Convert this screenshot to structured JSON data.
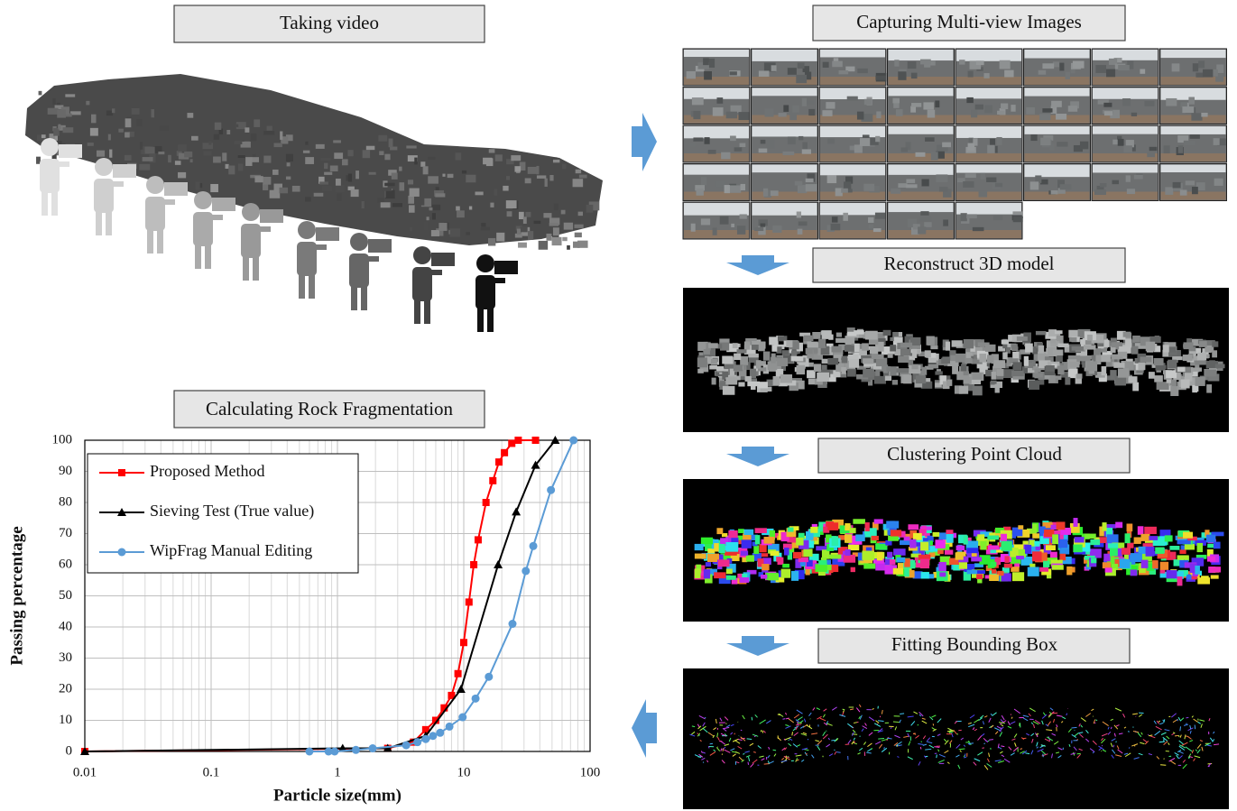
{
  "steps": {
    "taking_video": "Taking video",
    "capturing": "Capturing Multi-view Images",
    "reconstruct": "Reconstruct 3D model",
    "clustering": "Clustering Point Cloud",
    "fitting": "Fitting Bounding Box",
    "calculating": "Calculating Rock Fragmentation"
  },
  "chart_data": {
    "type": "line",
    "xlabel": "Particle size(mm)",
    "ylabel": "Passing percentage",
    "xscale": "log",
    "grid": true,
    "minor_grid": true,
    "legend": "upper left",
    "xlim": [
      0.01,
      100
    ],
    "xticks": [
      0.01,
      0.1,
      1,
      10,
      100
    ],
    "ylim": [
      0,
      100
    ],
    "yticks": [
      0,
      10,
      20,
      30,
      40,
      50,
      60,
      70,
      80,
      90,
      100
    ],
    "series": [
      {
        "name": "Proposed Method",
        "color": "#ff0000",
        "marker": "square",
        "x": [
          0.01,
          2.5,
          4,
          5,
          6,
          7,
          8,
          9,
          10,
          11,
          12,
          13,
          15,
          17,
          19,
          21,
          24,
          27,
          37
        ],
        "values": [
          0,
          1,
          3,
          7,
          10,
          14,
          18,
          25,
          35,
          48,
          60,
          68,
          80,
          87,
          93,
          96,
          99,
          100,
          100
        ]
      },
      {
        "name": "Sieving Test (True value)",
        "color": "#000000",
        "marker": "triangle",
        "x": [
          0.01,
          1.1,
          2.5,
          5,
          9.5,
          18.7,
          26,
          37,
          53
        ],
        "values": [
          0,
          1,
          1,
          5,
          20,
          60,
          77,
          92,
          100
        ]
      },
      {
        "name": "WipFrag Manual Editing",
        "color": "#5b9bd5",
        "marker": "circle",
        "x": [
          0.6,
          0.85,
          0.95,
          1.4,
          1.9,
          3.5,
          4.3,
          5,
          5.7,
          6.5,
          7.7,
          9.8,
          12.4,
          15.8,
          24.3,
          31,
          35.5,
          49,
          74
        ],
        "values": [
          0,
          0,
          0,
          0.5,
          1,
          2,
          3,
          4,
          5,
          6,
          8,
          11,
          17,
          24,
          41,
          58,
          66,
          84,
          100
        ]
      }
    ]
  }
}
